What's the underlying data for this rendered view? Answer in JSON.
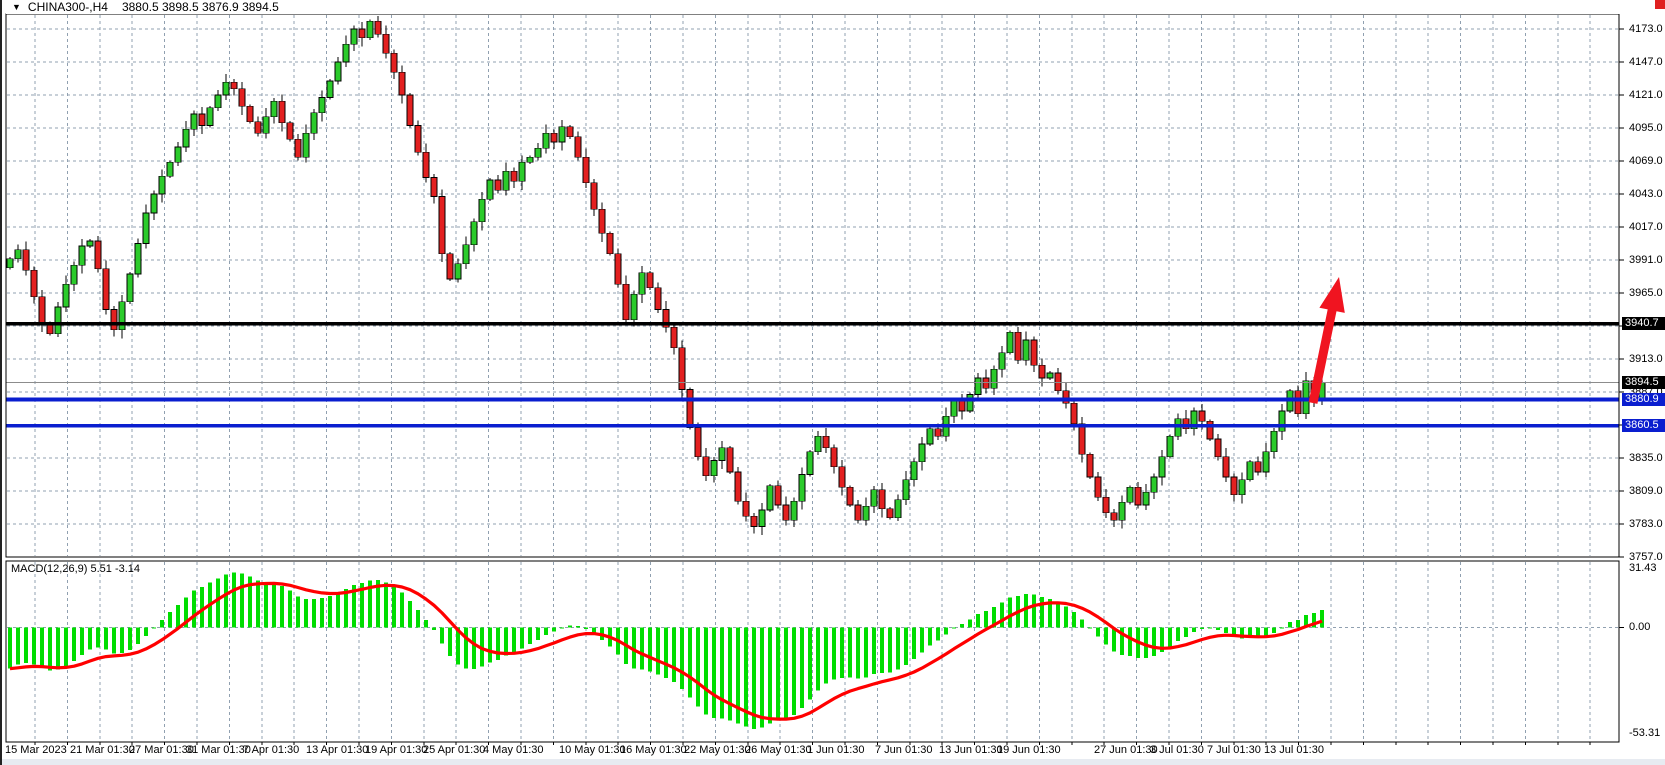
{
  "header": {
    "symbol_period": "CHINA300-,H4",
    "ohlc_text": "3880.5 3898.5 3876.9 3894.5",
    "open": "3880.5",
    "high": "3898.5",
    "low": "3876.9",
    "close": "3894.5",
    "dropdown_icon": "▼"
  },
  "colors": {
    "bull_candle": "#2bcb2b",
    "bear_candle": "#e32020",
    "candle_outline": "#000000",
    "wick": "#000000",
    "macd_histogram": "#00dd00",
    "macd_signal": "#ff0000",
    "grid": "#90a0b0",
    "black_level_line": "#000000",
    "bid_line": "#8c8c8c",
    "blue_level_line": "#0a1ecf",
    "arrow": "#f01420",
    "corner_mark": "#e02020",
    "background": "#ffffff"
  },
  "price_axis": {
    "visible_labels": [
      "4173.0",
      "4147.0",
      "4121.0",
      "4095.0",
      "4069.0",
      "4043.0",
      "4017.0",
      "3991.0",
      "3965.0",
      "3913.0",
      "3887.0",
      "3835.0",
      "3809.0",
      "3783.0",
      "3757.0"
    ],
    "grid_step": 26
  },
  "price_lines": [
    {
      "value": 3940.7,
      "label": "3940.7",
      "line_color": "#000000",
      "box_color": "#000000",
      "thickness": 3.5
    },
    {
      "value": 3894.5,
      "label": "3894.5",
      "line_color": "#8c8c8c",
      "box_color": "#000000",
      "thickness": 1
    },
    {
      "value": 3880.9,
      "label": "3880.9",
      "line_color": "#0a1ecf",
      "box_color": "#0a1ecf",
      "thickness": 4
    },
    {
      "value": 3860.5,
      "label": "3860.5",
      "line_color": "#0a1ecf",
      "box_color": "#0a1ecf",
      "thickness": 3.5
    }
  ],
  "macd_panel": {
    "label": "MACD(12,26,9)",
    "value": "5.51",
    "signal_value": "-3.14",
    "axis_labels": [
      "31.43",
      "0.00",
      "-53.31"
    ],
    "axis_max": 31.43,
    "axis_min": -53.31
  },
  "time_axis": {
    "labels": [
      "15 Mar 2023",
      "21 Mar 01:30",
      "27 Mar 01:30",
      "31 Mar 01:30",
      "7 Apr 01:30",
      "13 Apr 01:30",
      "19 Apr 01:30",
      "25 Apr 01:30",
      "4 May 01:30",
      "10 May 01:30",
      "16 May 01:30",
      "22 May 01:30",
      "26 May 01:30",
      "1 Jun 01:30",
      "7 Jun 01:30",
      "13 Jun 01:30",
      "19 Jun 01:30",
      "27 Jun 01:30",
      "3 Jul 01:30",
      "7 Jul 01:30",
      "13 Jul 01:30"
    ]
  },
  "annotations": {
    "arrow": {
      "shape": "up-arrow",
      "color": "#f01420",
      "from_price": 3883,
      "to_price": 3975,
      "meaning": "projected upward breakout"
    }
  },
  "chart_data": {
    "type": "candlestick",
    "symbol": "CHINA300-",
    "timeframe": "H4",
    "title": "CHINA300-,H4 3880.5 3898.5 3876.9 3894.5",
    "ylim": [
      3757,
      4186
    ],
    "grid_step": 26,
    "marked_levels": [
      3940.7,
      3894.5,
      3880.9,
      3860.5
    ],
    "current_bid": 3894.5,
    "first_open": 3985,
    "closes": [
      3992,
      3999,
      3983,
      3962,
      3941,
      3933,
      3954,
      3972,
      3987,
      4002,
      4006,
      3984,
      3952,
      3936,
      3958,
      3980,
      4004,
      4028,
      4043,
      4057,
      4068,
      4080,
      4094,
      4106,
      4097,
      4111,
      4121,
      4131,
      4126,
      4112,
      4100,
      4091,
      4104,
      4116,
      4099,
      4086,
      4072,
      4091,
      4107,
      4119,
      4132,
      4147,
      4161,
      4173,
      4166,
      4179,
      4169,
      4154,
      4139,
      4121,
      4097,
      4076,
      4056,
      4041,
      3996,
      3976,
      3988,
      4003,
      4021,
      4039,
      4054,
      4046,
      4061,
      4053,
      4068,
      4072,
      4079,
      4091,
      4084,
      4096,
      4088,
      4072,
      4052,
      4031,
      4012,
      3996,
      3972,
      3944,
      3964,
      3981,
      3969,
      3952,
      3938,
      3922,
      3889,
      3859,
      3836,
      3821,
      3833,
      3843,
      3824,
      3801,
      3789,
      3781,
      3794,
      3813,
      3798,
      3786,
      3801,
      3822,
      3840,
      3852,
      3843,
      3828,
      3812,
      3798,
      3786,
      3797,
      3810,
      3795,
      3788,
      3802,
      3818,
      3832,
      3846,
      3858,
      3852,
      3868,
      3880,
      3872,
      3885,
      3898,
      3890,
      3905,
      3918,
      3934,
      3912,
      3928,
      3908,
      3898,
      3902,
      3888,
      3878,
      3862,
      3838,
      3820,
      3804,
      3792,
      3786,
      3800,
      3812,
      3798,
      3808,
      3820,
      3836,
      3852,
      3866,
      3858,
      3872,
      3864,
      3850,
      3836,
      3820,
      3806,
      3818,
      3832,
      3824,
      3840,
      3856,
      3872,
      3888,
      3870,
      3896,
      3880.5,
      3894.5
    ],
    "last_candle": {
      "open": 3880.5,
      "high": 3898.5,
      "low": 3876.9,
      "close": 3894.5
    },
    "macd": {
      "type": "macd",
      "fast_ema": 12,
      "slow_ema": 26,
      "signal_ema": 9,
      "current_value": 5.51,
      "current_signal": -3.14,
      "display_max": 31.43,
      "display_min": -53.31
    }
  }
}
